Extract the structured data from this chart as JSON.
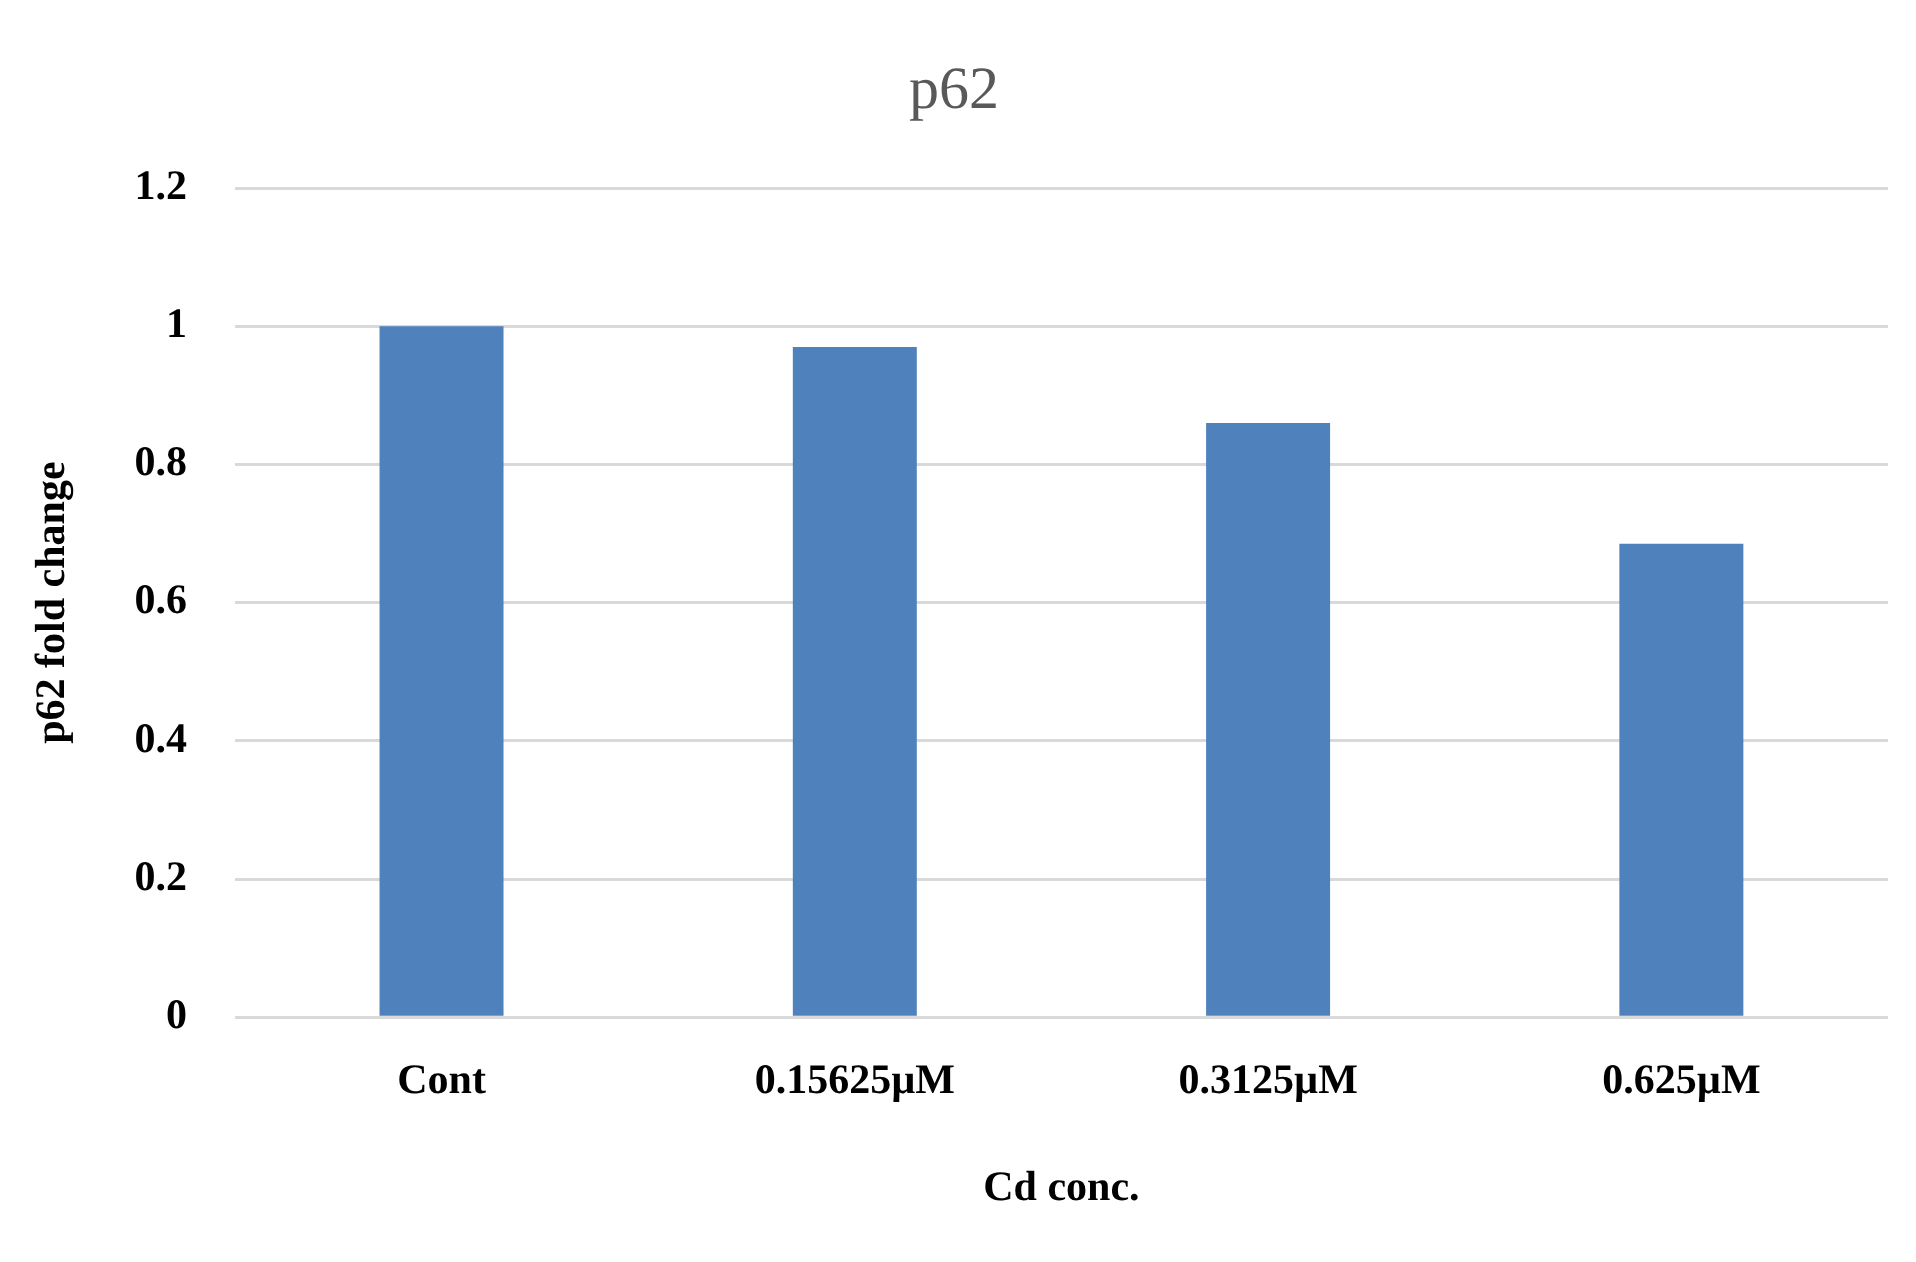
{
  "chart_data": {
    "type": "bar",
    "title": "p62",
    "xlabel": "Cd conc.",
    "ylabel": "p62 fold change",
    "categories": [
      "Cont",
      "0.15625µM",
      "0.3125µM",
      "0.625µM"
    ],
    "values": [
      1.0,
      0.97,
      0.86,
      0.685
    ],
    "color": "#4f81bd",
    "ylim": [
      0,
      1.2
    ],
    "yticks": [
      0,
      0.2,
      0.4,
      0.6,
      0.8,
      1,
      1.2
    ],
    "grid": "y",
    "legend": false
  }
}
